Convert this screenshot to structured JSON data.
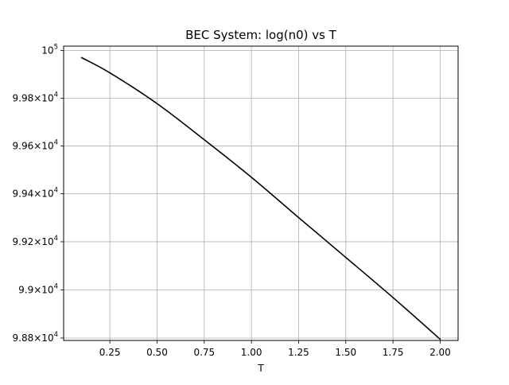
{
  "chart_data": {
    "type": "line",
    "title": "BEC System: log(n0) vs T",
    "xlabel": "T",
    "ylabel": "",
    "xlim": [
      0.005,
      2.095
    ],
    "ylim": [
      98790,
      100018
    ],
    "y_scale": "log",
    "grid": {
      "x": true,
      "y": true
    },
    "x_ticks": [
      {
        "value": 0.25,
        "label": "0.25"
      },
      {
        "value": 0.5,
        "label": "0.50"
      },
      {
        "value": 0.75,
        "label": "0.75"
      },
      {
        "value": 1.0,
        "label": "1.00"
      },
      {
        "value": 1.25,
        "label": "1.25"
      },
      {
        "value": 1.5,
        "label": "1.50"
      },
      {
        "value": 1.75,
        "label": "1.75"
      },
      {
        "value": 2.0,
        "label": "2.00"
      }
    ],
    "y_ticks": [
      {
        "value": 100000,
        "mantissa": "",
        "base": "10",
        "exponent": "5"
      },
      {
        "value": 99800,
        "mantissa": "9.98",
        "base": "10",
        "exponent": "4"
      },
      {
        "value": 99600,
        "mantissa": "9.96",
        "base": "10",
        "exponent": "4"
      },
      {
        "value": 99400,
        "mantissa": "9.94",
        "base": "10",
        "exponent": "4"
      },
      {
        "value": 99200,
        "mantissa": "9.92",
        "base": "10",
        "exponent": "4"
      },
      {
        "value": 99000,
        "mantissa": "9.9",
        "base": "10",
        "exponent": "4"
      },
      {
        "value": 98800,
        "mantissa": "9.88",
        "base": "10",
        "exponent": "4"
      }
    ],
    "series": [
      {
        "color": "#000000",
        "x": [
          0.1,
          0.25,
          0.5,
          0.75,
          1.0,
          1.25,
          1.5,
          1.75,
          2.0
        ],
        "y": [
          99970,
          99906,
          99777,
          99626,
          99469,
          99301,
          99135,
          98968,
          98795
        ]
      }
    ]
  }
}
